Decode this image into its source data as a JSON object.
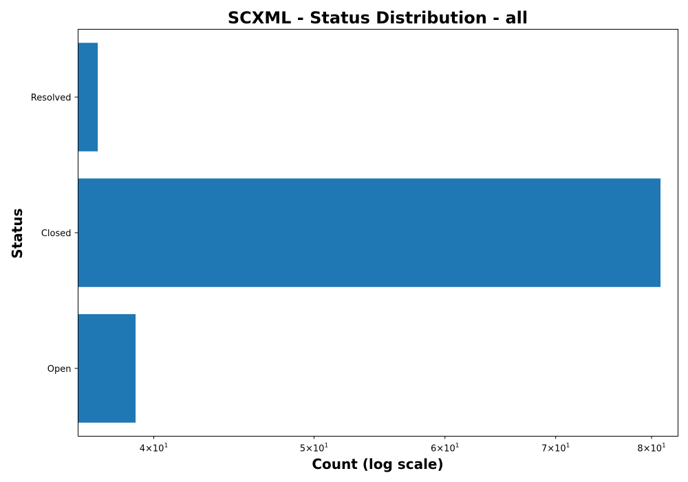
{
  "chart_data": {
    "type": "bar",
    "orientation": "horizontal",
    "title": "SCXML - Status Distribution - all",
    "xlabel": "Count (log scale)",
    "ylabel": "Status",
    "categories": [
      "Open",
      "Closed",
      "Resolved"
    ],
    "values": [
      39,
      81,
      37
    ],
    "x_scale": "log",
    "xlim": [
      36.0,
      83.0
    ],
    "x_ticks": [
      40,
      50,
      60,
      70,
      80
    ],
    "x_tick_labels": [
      {
        "base": "4×10",
        "exp": "1"
      },
      {
        "base": "5×10",
        "exp": "1"
      },
      {
        "base": "6×10",
        "exp": "1"
      },
      {
        "base": "7×10",
        "exp": "1"
      },
      {
        "base": "8×10",
        "exp": "1"
      }
    ],
    "bar_color": "#1f77b4",
    "grid": false,
    "legend": "none"
  }
}
